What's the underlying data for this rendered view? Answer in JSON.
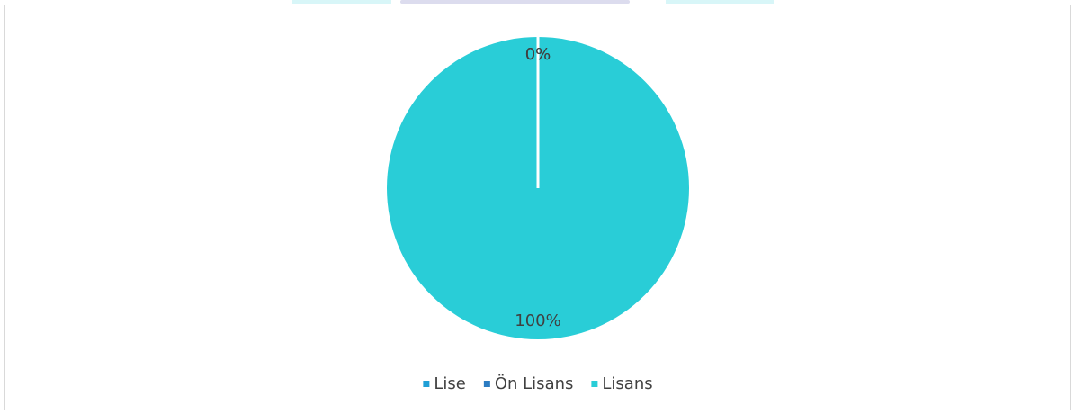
{
  "chart_data": {
    "type": "pie",
    "categories": [
      "Lise",
      "Ön Lisans",
      "Lisans"
    ],
    "values": [
      0,
      0,
      100
    ],
    "value_labels": [
      "0%",
      "0%",
      "100%"
    ],
    "colors": [
      "#1f9fd6",
      "#2b7cc2",
      "#29cdd7"
    ],
    "legend": "bottom"
  }
}
